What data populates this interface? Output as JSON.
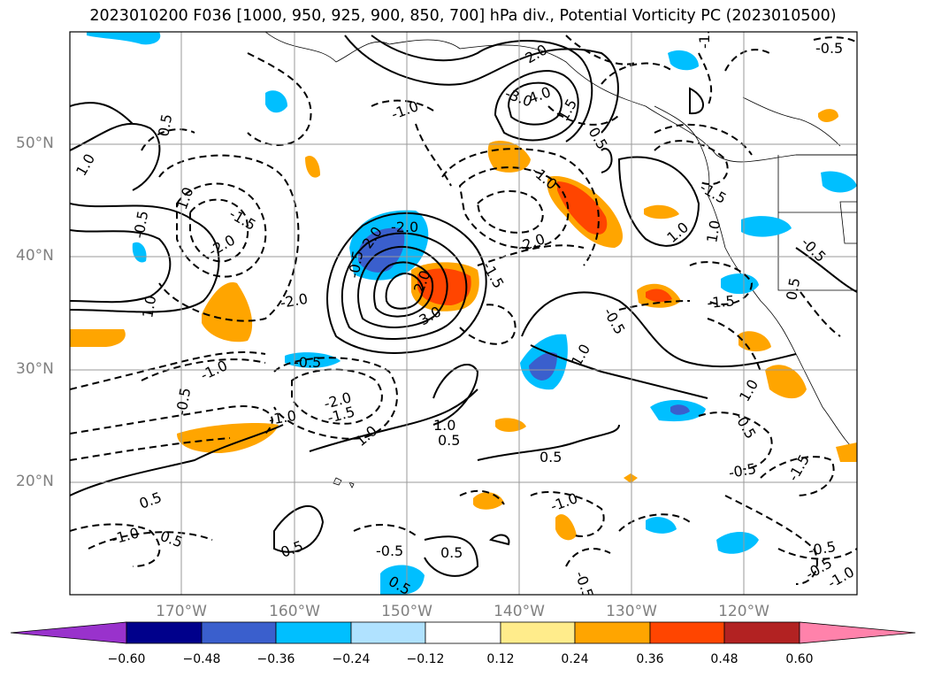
{
  "title": "2023010200 F036 [1000, 950, 925, 900, 850, 700] hPa div., Potential Vorticity PC (2023010500)",
  "latitude_labels": [
    "50°N",
    "40°N",
    "30°N",
    "20°N"
  ],
  "longitude_labels": [
    "170°W",
    "160°W",
    "150°W",
    "140°W",
    "130°W",
    "120°W"
  ],
  "colorbar": {
    "ticks": [
      "−0.60",
      "−0.48",
      "−0.36",
      "−0.24",
      "−0.12",
      "0.12",
      "0.24",
      "0.36",
      "0.48",
      "0.60"
    ],
    "colors": [
      "#9932cc",
      "#00008b",
      "#3a5fcd",
      "#00bfff",
      "#b0e2ff",
      "#ffffff",
      "#ffec8b",
      "#ffa500",
      "#ff4500",
      "#b22222",
      "#ff82ab"
    ]
  },
  "contour_labels": [
    "-0.5",
    "-1.0",
    "-1.5",
    "-2.0",
    "-3.0",
    "0.5",
    "1.0",
    "1.5",
    "2.0",
    "3.0",
    "4.0"
  ]
}
